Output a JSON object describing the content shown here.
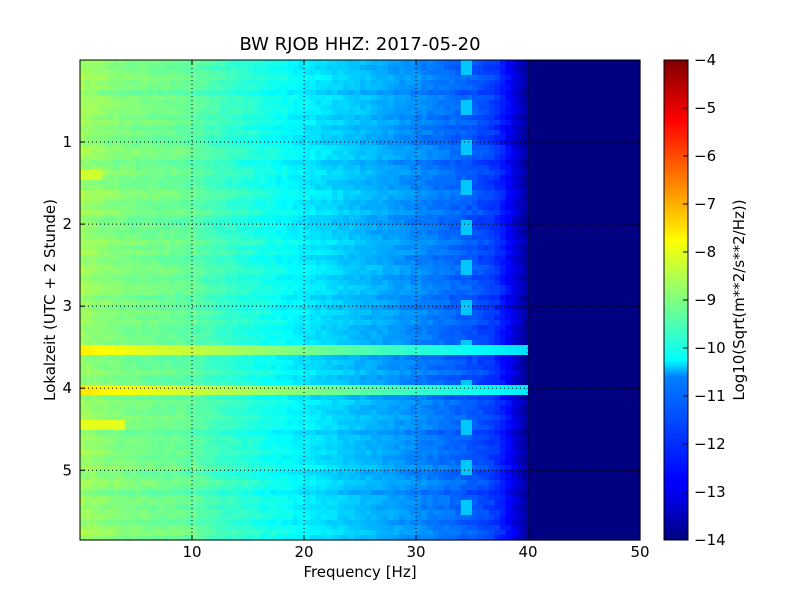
{
  "chart_data": {
    "type": "heatmap",
    "title": "BW RJOB HHZ: 2017-05-20",
    "xlabel": "Frequency [Hz]",
    "ylabel": "Lokalzeit (UTC + 2 Stunde)",
    "xlim": [
      0,
      50
    ],
    "ylim": [
      5.85,
      0
    ],
    "x_ticks": [
      10,
      20,
      30,
      40,
      50
    ],
    "y_ticks": [
      1,
      2,
      3,
      4,
      5
    ],
    "grid": true,
    "colormap": "jet",
    "colorbar": {
      "label": "Log10(Sqrt(m**2/s**2/Hz))",
      "range": [
        -14,
        -4
      ],
      "ticks": [
        -4,
        -5,
        -6,
        -7,
        -8,
        -9,
        -10,
        -11,
        -12,
        -13,
        -14
      ]
    },
    "background_profile": {
      "frequency_hz": [
        0,
        2,
        5,
        8,
        10,
        12,
        15,
        18,
        20,
        22,
        25,
        28,
        30,
        33,
        35,
        37,
        38,
        40,
        50
      ],
      "log10_amplitude": [
        -8.7,
        -8.9,
        -9.1,
        -9.2,
        -9.3,
        -9.6,
        -9.9,
        -10.2,
        -10.4,
        -10.6,
        -10.9,
        -11.2,
        -11.4,
        -11.7,
        -11.9,
        -12.2,
        -12.6,
        -13.8,
        -14.0
      ]
    },
    "events": [
      {
        "time_h": 3.53,
        "freq_range_hz": [
          0,
          43
        ],
        "log10_amplitude": -7.6
      },
      {
        "time_h": 4.0,
        "freq_range_hz": [
          0,
          43
        ],
        "log10_amplitude": -7.5
      },
      {
        "time_h": 4.45,
        "freq_range_hz": [
          0,
          4
        ],
        "log10_amplitude": -8.0
      },
      {
        "time_h": 1.4,
        "freq_range_hz": [
          0,
          2
        ],
        "log10_amplitude": -8.2
      }
    ],
    "tonal_line": {
      "freq_hz": 34.5,
      "log10_amplitude": -10.8
    }
  }
}
